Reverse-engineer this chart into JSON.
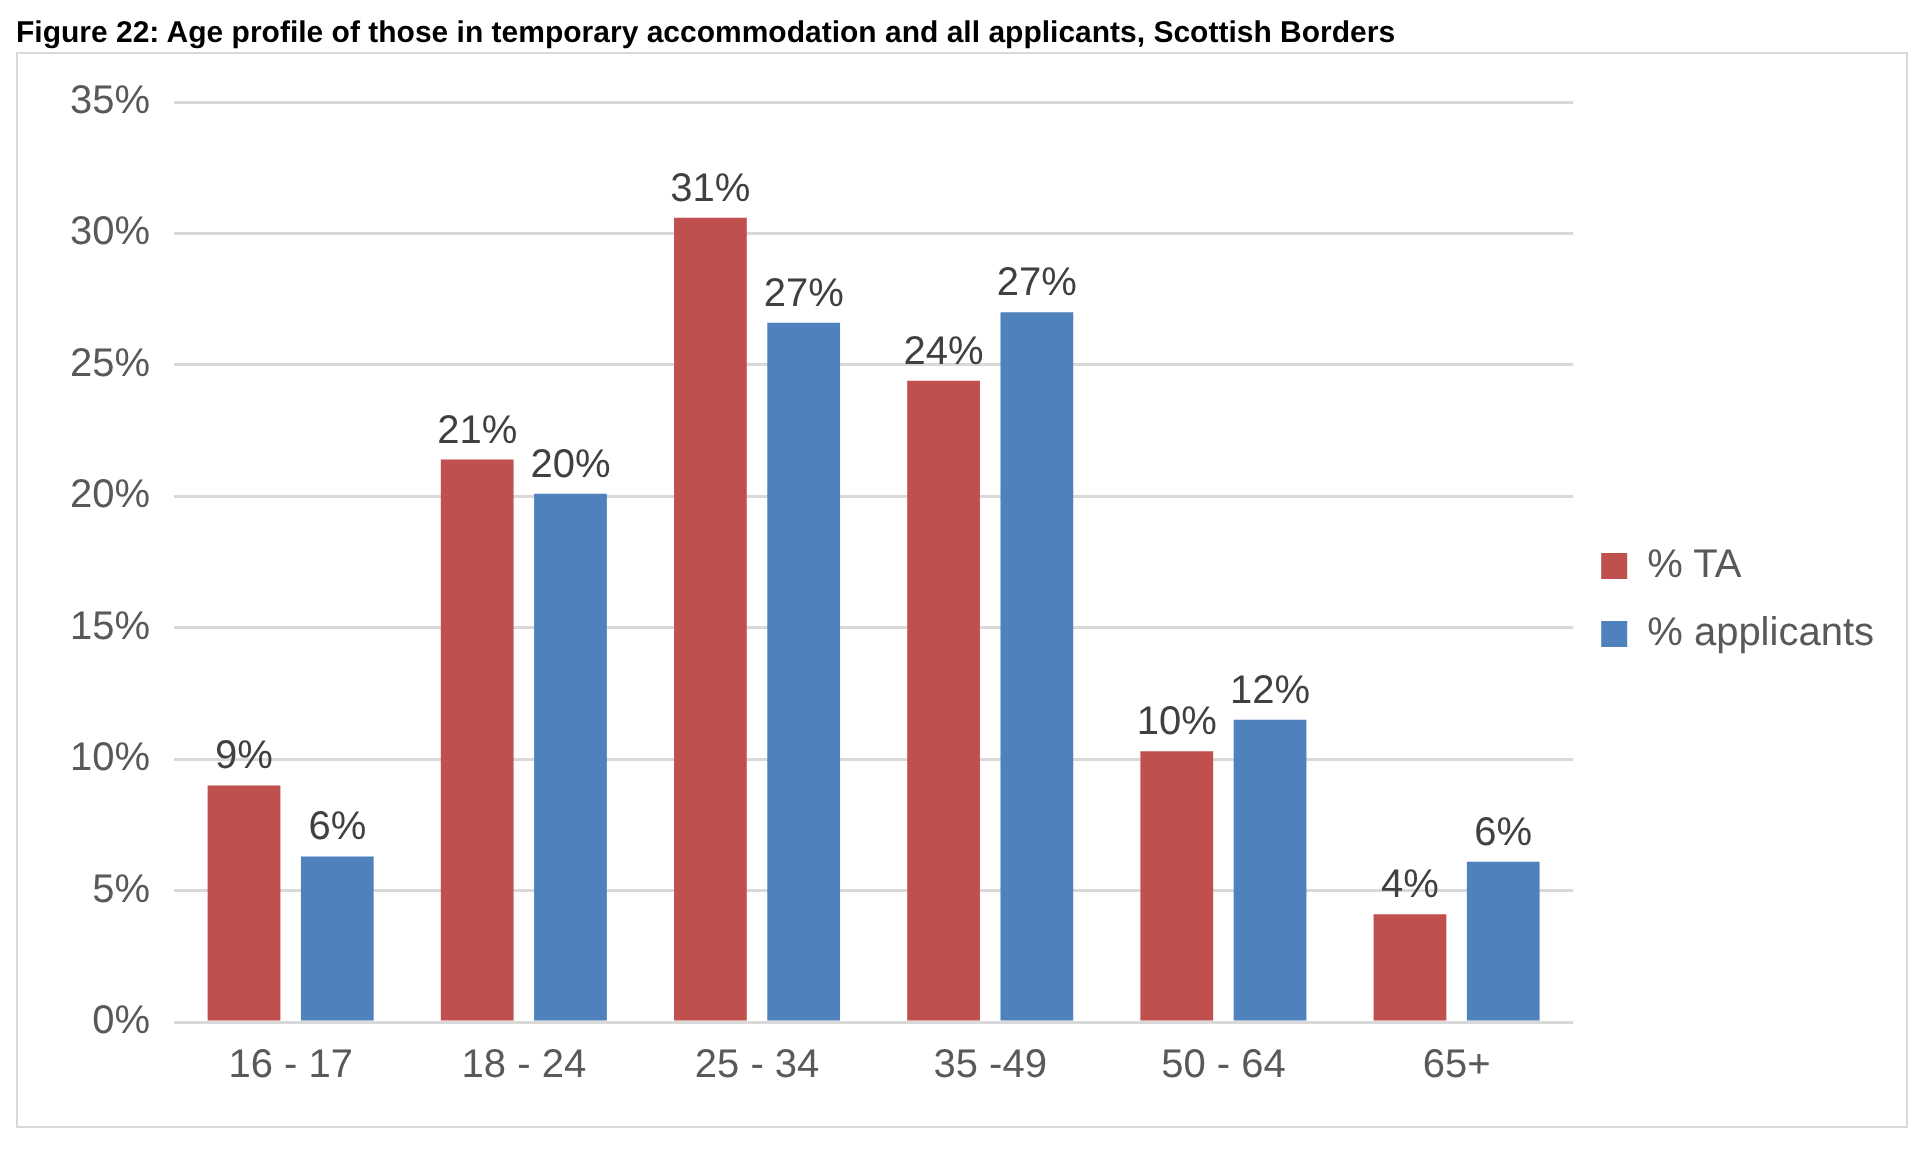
{
  "chart_data": {
    "type": "bar",
    "title": "Figure 22: Age profile of those in temporary accommodation and all applicants, Scottish Borders",
    "categories": [
      "16 - 17",
      "18 - 24",
      "25 - 34",
      "35 -49",
      "50 - 64",
      "65+"
    ],
    "series": [
      {
        "name": "% TA",
        "color": "#c0504d",
        "values": [
          9.0,
          21.4,
          30.6,
          24.4,
          10.3,
          4.1
        ],
        "value_labels": [
          "9%",
          "21%",
          "31%",
          "24%",
          "10%",
          "4%"
        ]
      },
      {
        "name": "% applicants",
        "color": "#4f81bd",
        "values": [
          6.3,
          20.1,
          26.6,
          27.0,
          11.5,
          6.1
        ],
        "value_labels": [
          "6%",
          "20%",
          "27%",
          "27%",
          "12%",
          "6%"
        ]
      }
    ],
    "ylim": [
      0,
      35
    ],
    "yticks": [
      {
        "value": 0,
        "label": "0%"
      },
      {
        "value": 5,
        "label": "5%"
      },
      {
        "value": 10,
        "label": "10%"
      },
      {
        "value": 15,
        "label": "15%"
      },
      {
        "value": 20,
        "label": "20%"
      },
      {
        "value": 25,
        "label": "25%"
      },
      {
        "value": 30,
        "label": "30%"
      },
      {
        "value": 35,
        "label": "35%"
      }
    ],
    "grid": "y",
    "legend": "right"
  }
}
